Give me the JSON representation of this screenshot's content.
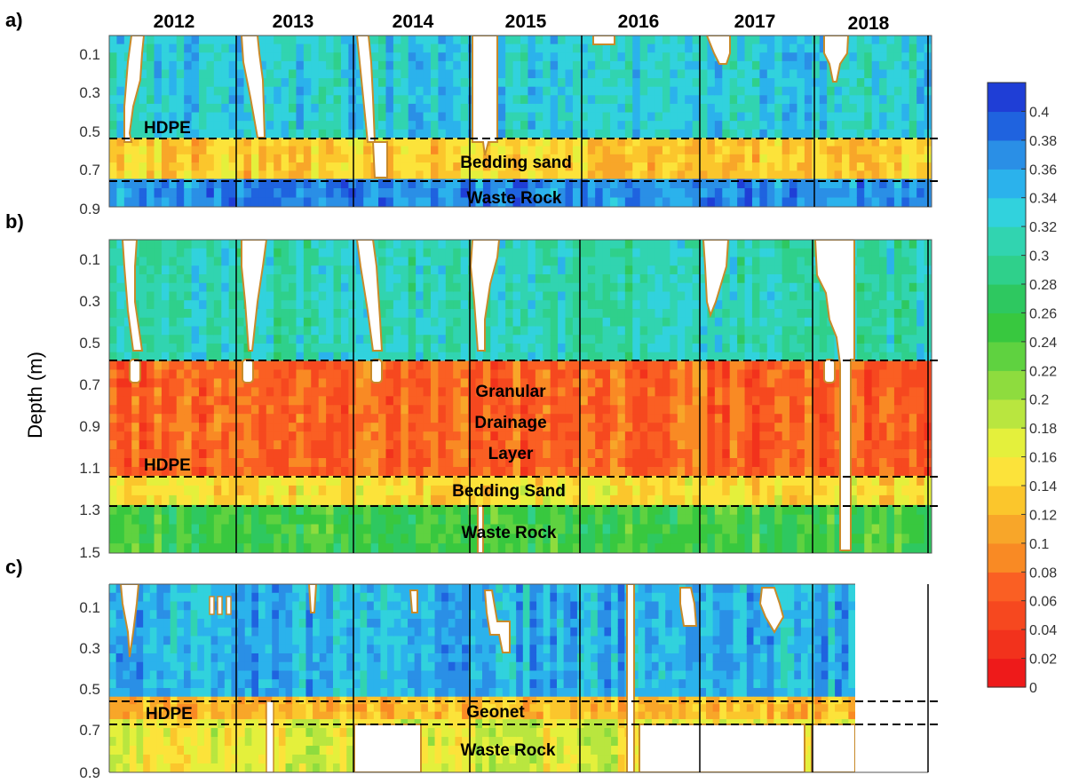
{
  "chart_data": {
    "type": "heatmap",
    "ylabel": "Depth (m)",
    "years": [
      "2012",
      "2013",
      "2014",
      "2015",
      "2016",
      "2017",
      "2018"
    ],
    "colorbar": {
      "min": 0,
      "max": 0.42,
      "ticks": [
        "0.4",
        "0.38",
        "0.36",
        "0.34",
        "0.32",
        "0.3",
        "0.28",
        "0.26",
        "0.24",
        "0.22",
        "0.2",
        "0.18",
        "0.16",
        "0.14",
        "0.12",
        "0.1",
        "0.08",
        "0.06",
        "0.04",
        "0.02",
        "0"
      ],
      "palette": [
        "#ee1a1a",
        "#f2321c",
        "#f6481f",
        "#fa5f23",
        "#f98a24",
        "#f8a629",
        "#fbc62c",
        "#fce33a",
        "#e4f03c",
        "#b9e63f",
        "#8edc3e",
        "#5fd240",
        "#38c83f",
        "#2ec860",
        "#2fd08b",
        "#31d4b0",
        "#31d2dd",
        "#2bb2ec",
        "#2a8fe6",
        "#1f63df",
        "#1f3ed6"
      ]
    },
    "panels": [
      {
        "tag": "a)",
        "ylim": [
          0,
          0.92
        ],
        "yticks": [
          "0.1",
          "0.3",
          "0.5",
          "0.7",
          "0.9"
        ],
        "ytick_values": [
          0.1,
          0.3,
          0.5,
          0.7,
          0.9
        ],
        "layers": [
          {
            "name": "",
            "top": 0,
            "bottom": 0.55,
            "value": 0.33
          },
          {
            "name": "Bedding sand",
            "top": 0.55,
            "bottom": 0.77,
            "value": 0.135
          },
          {
            "name": "Waste Rock",
            "top": 0.77,
            "bottom": 0.92,
            "value": 0.37
          }
        ],
        "boundaries": [
          0.55,
          0.77
        ],
        "annotations": [
          "HDPE",
          "Bedding sand",
          "Waste Rock"
        ]
      },
      {
        "tag": "b)",
        "ylim": [
          0,
          1.5
        ],
        "yticks": [
          "0.1",
          "0.3",
          "0.5",
          "0.7",
          "0.9",
          "1.1",
          "1.3",
          "1.5"
        ],
        "ytick_values": [
          0.1,
          0.3,
          0.5,
          0.7,
          0.9,
          1.1,
          1.3,
          1.5
        ],
        "layers": [
          {
            "name": "",
            "top": 0,
            "bottom": 0.58,
            "value": 0.31
          },
          {
            "name": "Granular Drainage Layer",
            "top": 0.58,
            "bottom": 1.13,
            "value": 0.07
          },
          {
            "name": "Bedding Sand",
            "top": 1.13,
            "bottom": 1.27,
            "value": 0.15
          },
          {
            "name": "Waste Rock",
            "top": 1.27,
            "bottom": 1.5,
            "value": 0.25
          }
        ],
        "boundaries": [
          0.58,
          1.13,
          1.27
        ],
        "annotations": [
          "Granular",
          "Drainage",
          "Layer",
          "HDPE",
          "Bedding Sand",
          "Waste Rock"
        ]
      },
      {
        "tag": "c)",
        "ylim": [
          0,
          0.92
        ],
        "yticks": [
          "0.1",
          "0.3",
          "0.5",
          "0.7",
          "0.9"
        ],
        "ytick_values": [
          0.1,
          0.3,
          0.5,
          0.7,
          0.9
        ],
        "layers": [
          {
            "name": "",
            "top": 0,
            "bottom": 0.55,
            "value": 0.35
          },
          {
            "name": "Geonet",
            "top": 0.55,
            "bottom": 0.66,
            "value": 0.12
          },
          {
            "name": "Waste Rock",
            "top": 0.66,
            "bottom": 0.92,
            "value": 0.17
          }
        ],
        "boundaries": [
          0.55,
          0.66
        ],
        "annotations": [
          "HDPE",
          "Geonet",
          "Waste Rock"
        ]
      }
    ]
  }
}
